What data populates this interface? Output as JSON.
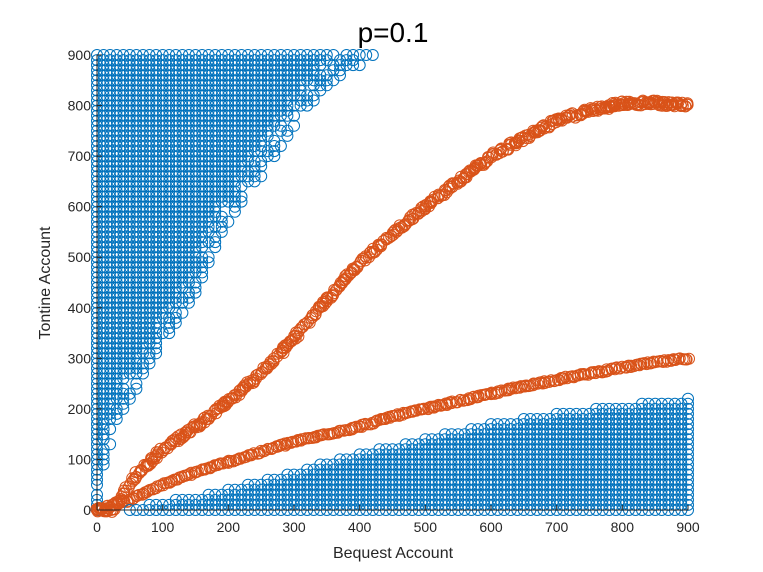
{
  "chart_data": {
    "type": "scatter",
    "title": "p=0.1",
    "xlabel": "Bequest Account",
    "ylabel": "Tontine Account",
    "xlim": [
      0,
      900
    ],
    "ylim": [
      0,
      900
    ],
    "xticks": [
      0,
      100,
      200,
      300,
      400,
      500,
      600,
      700,
      800,
      900
    ],
    "yticks": [
      0,
      100,
      200,
      300,
      400,
      500,
      600,
      700,
      800,
      900
    ],
    "tick_labels_x": [
      "0",
      "100",
      "200",
      "300",
      "400",
      "500",
      "600",
      "700",
      "800",
      "900"
    ],
    "tick_labels_y": [
      "0",
      "100",
      "200",
      "300",
      "400",
      "500",
      "600",
      "700",
      "800",
      "900"
    ],
    "grid": false,
    "marker": "open-circle",
    "colors": {
      "blue": "#0072BD",
      "orange": "#D95319"
    },
    "series": [
      {
        "color": "#0072BD",
        "region": "upper-left",
        "boundary_x": [
          0,
          10,
          30,
          60,
          100,
          150,
          200,
          250,
          300,
          350,
          400,
          430
        ],
        "boundary_y": [
          0,
          80,
          180,
          240,
          320,
          430,
          570,
          660,
          760,
          840,
          880,
          900
        ],
        "y_max": 900
      },
      {
        "color": "#D95319",
        "curve": "upper",
        "x": [
          0,
          25,
          40,
          60,
          100,
          150,
          200,
          250,
          300,
          350,
          400,
          450,
          500,
          550,
          600,
          650,
          700,
          750,
          800,
          850,
          900
        ],
        "y": [
          0,
          0,
          30,
          70,
          120,
          165,
          215,
          270,
          340,
          415,
          490,
          545,
          600,
          650,
          700,
          735,
          770,
          790,
          805,
          805,
          800
        ]
      },
      {
        "color": "#D95319",
        "curve": "lower",
        "x": [
          0,
          50,
          100,
          150,
          200,
          250,
          300,
          350,
          400,
          450,
          500,
          550,
          600,
          650,
          700,
          750,
          800,
          850,
          900
        ],
        "y": [
          0,
          20,
          50,
          75,
          95,
          115,
          135,
          150,
          165,
          185,
          200,
          215,
          230,
          245,
          258,
          270,
          282,
          292,
          300
        ]
      },
      {
        "color": "#0072BD",
        "region": "lower-right",
        "boundary_x": [
          50,
          100,
          150,
          200,
          250,
          300,
          400,
          500,
          600,
          700,
          800,
          900
        ],
        "boundary_y": [
          0,
          15,
          25,
          40,
          55,
          75,
          110,
          140,
          170,
          190,
          205,
          220
        ],
        "y_min": 0
      }
    ]
  }
}
